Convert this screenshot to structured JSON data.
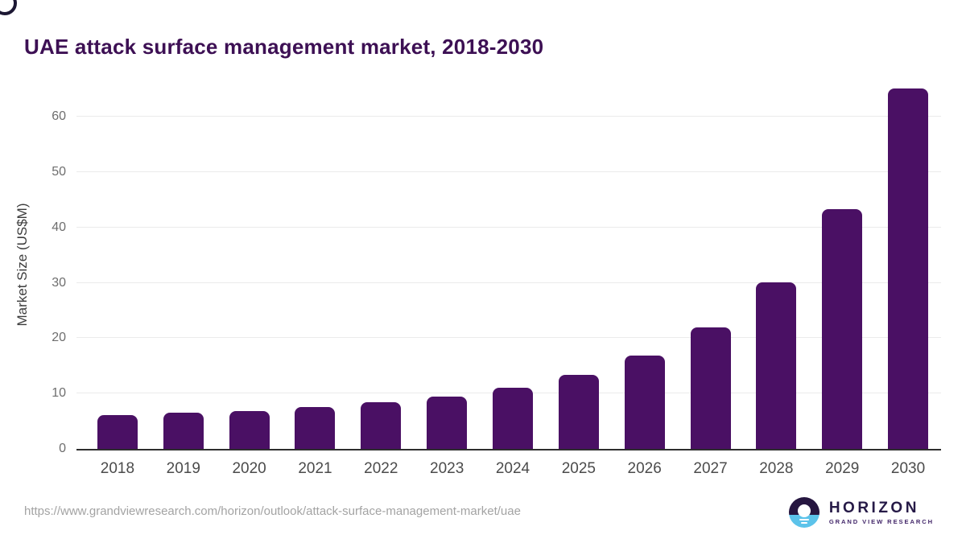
{
  "title": "UAE attack surface management market, 2018-2030",
  "footer": {
    "source_url": "https://www.grandviewresearch.com/horizon/outlook/attack-surface-management-market/uae",
    "logo_name": "HORIZON",
    "logo_subtitle": "GRAND VIEW RESEARCH"
  },
  "colors": {
    "bar": "#4a1064",
    "title": "#3d1054",
    "axis_line": "#2e2e2e",
    "gridline": "#ebebeb",
    "logo_navy": "#261640",
    "logo_blue": "#5cc3ea"
  },
  "chart_data": {
    "type": "bar",
    "title": "UAE attack surface management market, 2018-2030",
    "xlabel": "",
    "ylabel": "Market Size (US$M)",
    "categories": [
      "2018",
      "2019",
      "2020",
      "2021",
      "2022",
      "2023",
      "2024",
      "2025",
      "2026",
      "2027",
      "2028",
      "2029",
      "2030"
    ],
    "values": [
      6.1,
      6.5,
      6.9,
      7.6,
      8.5,
      9.4,
      11.0,
      13.4,
      16.8,
      22.0,
      30.1,
      43.4,
      65.1
    ],
    "ylim": [
      0,
      66.6
    ],
    "yticks": [
      0,
      10,
      20,
      30,
      40,
      50,
      60
    ],
    "grid": true,
    "legend": false,
    "bar_color": "#4a1064"
  }
}
